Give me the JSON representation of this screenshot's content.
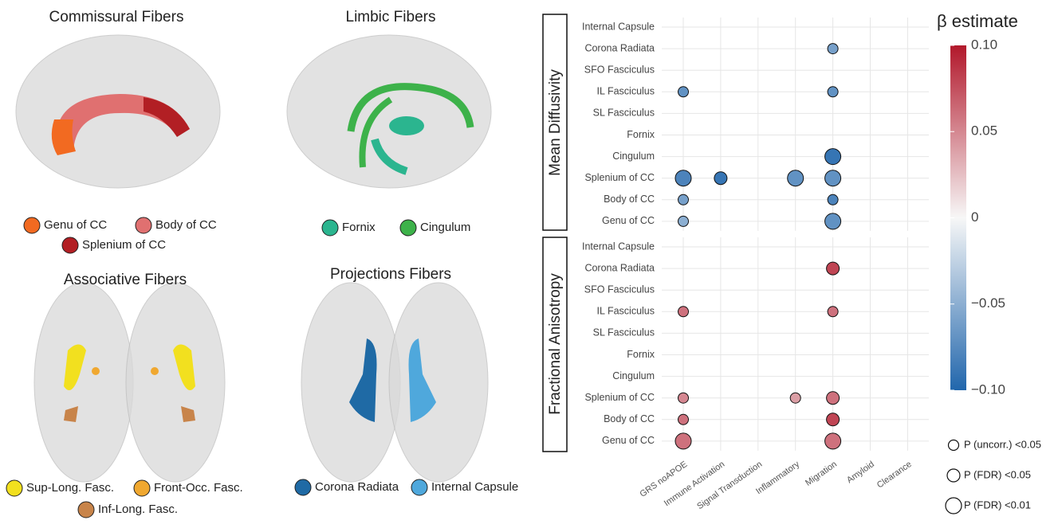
{
  "panels": [
    {
      "title": "Commissural Fibers",
      "legend": [
        {
          "label": "Genu of CC",
          "color": "#f26a21"
        },
        {
          "label": "Body of CC",
          "color": "#e07070"
        },
        {
          "label": "Splenium of CC",
          "color": "#b21f24"
        }
      ]
    },
    {
      "title": "Limbic Fibers",
      "legend": [
        {
          "label": "Fornix",
          "color": "#2bb58f"
        },
        {
          "label": "Cingulum",
          "color": "#3db24a"
        }
      ]
    },
    {
      "title": "Associative Fibers",
      "legend": [
        {
          "label": "Sup-Long. Fasc.",
          "color": "#f2e01f"
        },
        {
          "label": "Front-Occ. Fasc.",
          "color": "#f0a830"
        },
        {
          "label": "Inf-Long. Fasc.",
          "color": "#c8844a"
        }
      ]
    },
    {
      "title": "Projections Fibers",
      "legend": [
        {
          "label": "Corona Radiata",
          "color": "#1f6aa5"
        },
        {
          "label": "Internal Capsule",
          "color": "#4fa8dc"
        }
      ]
    }
  ],
  "chart_data": {
    "type": "bubble",
    "categories": [
      "GRS noAPOE",
      "Immune Activation",
      "Signal Transduction",
      "Inflammatory",
      "Migration",
      "Amyloid",
      "Clearance"
    ],
    "grid": true,
    "facets": [
      {
        "label": "Mean Diffusivity",
        "rows": [
          "Internal Capsule",
          "Corona Radiata",
          "SFO Fasciculus",
          "IL Fasciculus",
          "SL Fasciculus",
          "Fornix",
          "Cingulum",
          "Splenium of CC",
          "Body of CC",
          "Genu of CC"
        ],
        "points": [
          {
            "x": "Migration",
            "y": "Corona Radiata",
            "value": -0.06,
            "p": "P (uncorr.) <0.05"
          },
          {
            "x": "GRS noAPOE",
            "y": "IL Fasciculus",
            "value": -0.07,
            "p": "P (uncorr.) <0.05"
          },
          {
            "x": "Migration",
            "y": "IL Fasciculus",
            "value": -0.07,
            "p": "P (uncorr.) <0.05"
          },
          {
            "x": "Migration",
            "y": "Cingulum",
            "value": -0.09,
            "p": "P (FDR) <0.01"
          },
          {
            "x": "GRS noAPOE",
            "y": "Splenium of CC",
            "value": -0.08,
            "p": "P (FDR) <0.01"
          },
          {
            "x": "Immune Activation",
            "y": "Splenium of CC",
            "value": -0.09,
            "p": "P (FDR) <0.05"
          },
          {
            "x": "Inflammatory",
            "y": "Splenium of CC",
            "value": -0.07,
            "p": "P (FDR) <0.01"
          },
          {
            "x": "Migration",
            "y": "Splenium of CC",
            "value": -0.07,
            "p": "P (FDR) <0.01"
          },
          {
            "x": "GRS noAPOE",
            "y": "Body of CC",
            "value": -0.06,
            "p": "P (uncorr.) <0.05"
          },
          {
            "x": "Migration",
            "y": "Body of CC",
            "value": -0.08,
            "p": "P (uncorr.) <0.05"
          },
          {
            "x": "GRS noAPOE",
            "y": "Genu of CC",
            "value": -0.05,
            "p": "P (uncorr.) <0.05"
          },
          {
            "x": "Migration",
            "y": "Genu of CC",
            "value": -0.07,
            "p": "P (FDR) <0.01"
          }
        ]
      },
      {
        "label": "Fractional Anisotropy",
        "rows": [
          "Internal Capsule",
          "Corona Radiata",
          "SFO Fasciculus",
          "IL Fasciculus",
          "SL Fasciculus",
          "Fornix",
          "Cingulum",
          "Splenium of CC",
          "Body of CC",
          "Genu of CC"
        ],
        "points": [
          {
            "x": "Migration",
            "y": "Corona Radiata",
            "value": 0.08,
            "p": "P (FDR) <0.05"
          },
          {
            "x": "GRS noAPOE",
            "y": "IL Fasciculus",
            "value": 0.06,
            "p": "P (uncorr.) <0.05"
          },
          {
            "x": "Migration",
            "y": "IL Fasciculus",
            "value": 0.06,
            "p": "P (uncorr.) <0.05"
          },
          {
            "x": "GRS noAPOE",
            "y": "Splenium of CC",
            "value": 0.05,
            "p": "P (uncorr.) <0.05"
          },
          {
            "x": "Inflammatory",
            "y": "Splenium of CC",
            "value": 0.04,
            "p": "P (uncorr.) <0.05"
          },
          {
            "x": "Migration",
            "y": "Splenium of CC",
            "value": 0.06,
            "p": "P (FDR) <0.05"
          },
          {
            "x": "GRS noAPOE",
            "y": "Body of CC",
            "value": 0.06,
            "p": "P (uncorr.) <0.05"
          },
          {
            "x": "Migration",
            "y": "Body of CC",
            "value": 0.08,
            "p": "P (FDR) <0.05"
          },
          {
            "x": "GRS noAPOE",
            "y": "Genu of CC",
            "value": 0.06,
            "p": "P (FDR) <0.01"
          },
          {
            "x": "Migration",
            "y": "Genu of CC",
            "value": 0.06,
            "p": "P (FDR) <0.01"
          }
        ]
      }
    ],
    "colorbar": {
      "title": "β estimate",
      "lim": [
        -0.1,
        0.1
      ],
      "colors": [
        "#2166ac",
        "#f7f7f7",
        "#b2182b"
      ],
      "ticks": [
        {
          "value": 0.1,
          "label": "0.10"
        },
        {
          "value": 0.05,
          "label": "0.05"
        },
        0,
        {
          "value": -0.05,
          "label": "−0.05"
        },
        {
          "value": -0.1,
          "label": "−0.10"
        }
      ]
    },
    "size_legend": [
      "P (uncorr.) <0.05",
      "P (FDR) <0.05",
      "P (FDR) <0.01"
    ]
  }
}
